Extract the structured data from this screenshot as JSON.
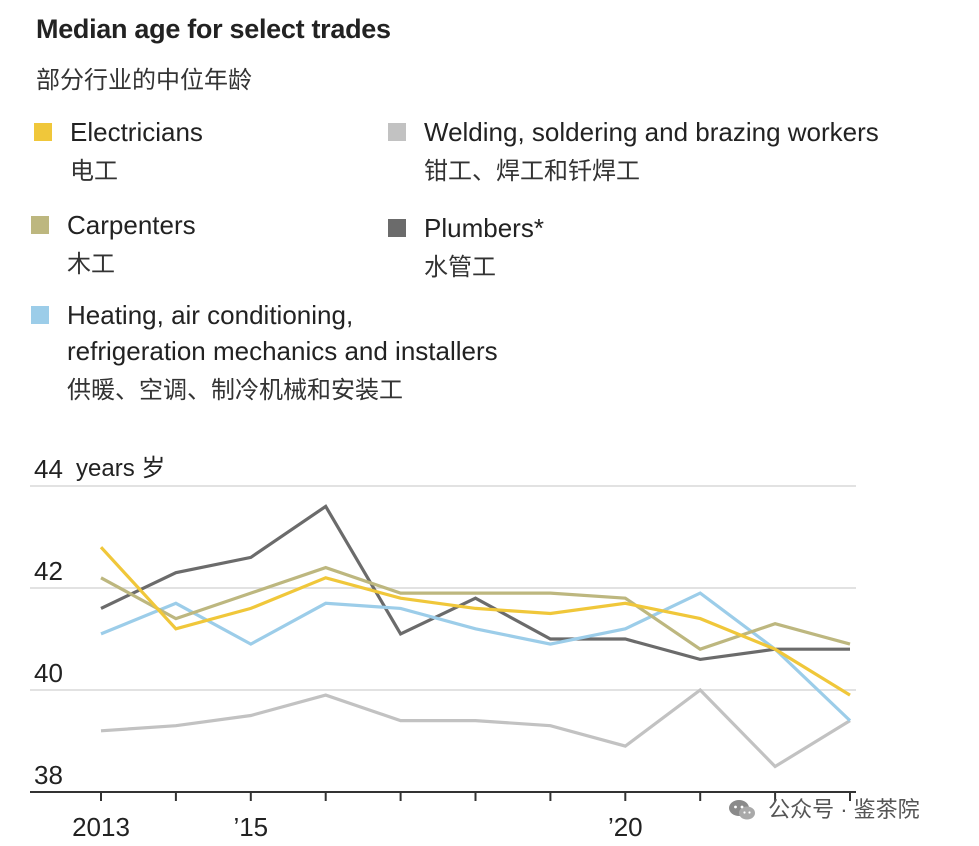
{
  "title": "Median age for select trades",
  "subtitle": "部分行业的中位年龄",
  "legend": [
    {
      "label": "Electricians",
      "sub": "电工",
      "color": "#f0c73a"
    },
    {
      "label": "Carpenters",
      "sub": "木工",
      "color": "#bdb77f"
    },
    {
      "label": "Heating, air conditioning, refrigeration mechanics and installers",
      "label_line1": "Heating, air conditioning,",
      "label_line2": "refrigeration mechanics and installers",
      "sub": "供暖、空调、制冷机械和安装工",
      "color": "#9ccde9"
    },
    {
      "label": "Welding, soldering and brazing workers",
      "sub": "钳工、焊工和钎焊工",
      "color": "#c2c2c2"
    },
    {
      "label": "Plumbers*",
      "sub": "水管工",
      "color": "#6b6b6b"
    }
  ],
  "watermark": "公众号 · 鉴茶院",
  "chart_data": {
    "type": "line",
    "x": [
      2013,
      2014,
      2015,
      2016,
      2017,
      2018,
      2019,
      2020,
      2021,
      2022,
      2023
    ],
    "x_tick_labels": [
      {
        "x": 2013,
        "label": "2013"
      },
      {
        "x": 2015,
        "label": "’15"
      },
      {
        "x": 2020,
        "label": "’20"
      }
    ],
    "ylim": [
      38,
      44
    ],
    "y_ticks": [
      {
        "value": 44,
        "label": "44",
        "unit": "years 岁"
      },
      {
        "value": 42,
        "label": "42"
      },
      {
        "value": 40,
        "label": "40"
      },
      {
        "value": 38,
        "label": "38"
      }
    ],
    "series": [
      {
        "name": "Welding, soldering and brazing workers",
        "color": "#c2c2c2",
        "values": [
          39.2,
          39.3,
          39.5,
          39.9,
          39.4,
          39.4,
          39.3,
          38.9,
          40.0,
          38.5,
          39.4
        ]
      },
      {
        "name": "Plumbers*",
        "color": "#6b6b6b",
        "values": [
          41.6,
          42.3,
          42.6,
          43.6,
          41.1,
          41.8,
          41.0,
          41.0,
          40.6,
          40.8,
          40.8
        ]
      },
      {
        "name": "Heating, air conditioning, refrigeration mechanics and installers",
        "color": "#9ccde9",
        "values": [
          41.1,
          41.7,
          40.9,
          41.7,
          41.6,
          41.2,
          40.9,
          41.2,
          41.9,
          40.8,
          39.4
        ]
      },
      {
        "name": "Carpenters",
        "color": "#bdb77f",
        "values": [
          42.2,
          41.4,
          41.9,
          42.4,
          41.9,
          41.9,
          41.9,
          41.8,
          40.8,
          41.3,
          40.9
        ]
      },
      {
        "name": "Electricians",
        "color": "#f0c73a",
        "values": [
          42.8,
          41.2,
          41.6,
          42.2,
          41.8,
          41.6,
          41.5,
          41.7,
          41.4,
          40.8,
          39.9
        ]
      }
    ]
  }
}
